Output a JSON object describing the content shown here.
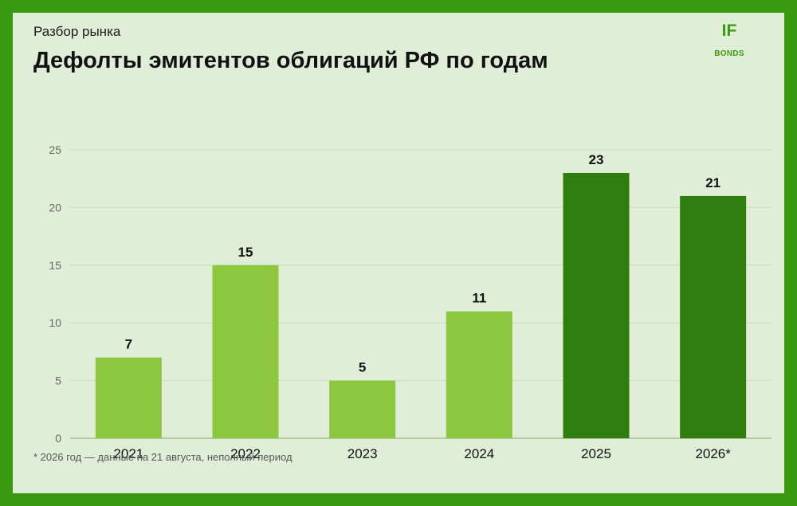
{
  "header": {
    "kicker": "Разбор рынка",
    "title": "Дефолты эмитентов облигаций РФ по годам",
    "logo_mark": "IF",
    "logo_sub": "BONDS"
  },
  "footnote": "* 2026 год — данные на 21 августа, неполный период",
  "colors": {
    "frame": "#3a9a0f",
    "background": "#e0eed8",
    "bar_light": "#8dc63f",
    "bar_dark": "#2e7d0e",
    "grid": "#c6ddb8"
  },
  "chart_data": {
    "type": "bar",
    "title": "Дефолты эмитентов облигаций РФ по годам",
    "categories": [
      "2021",
      "2022",
      "2023",
      "2024",
      "2025",
      "2026*"
    ],
    "values": [
      7,
      15,
      5,
      11,
      23,
      21
    ],
    "bar_colors": [
      "#8dc63f",
      "#8dc63f",
      "#8dc63f",
      "#8dc63f",
      "#2e7d0e",
      "#2e7d0e"
    ],
    "data_labels": [
      "7",
      "15",
      "5",
      "11",
      "23",
      "21"
    ],
    "yticks": [
      0,
      5,
      10,
      15,
      20,
      25
    ],
    "ylim": [
      0,
      25
    ],
    "xlabel": "",
    "ylabel": "",
    "grid": true,
    "legend": "none"
  }
}
